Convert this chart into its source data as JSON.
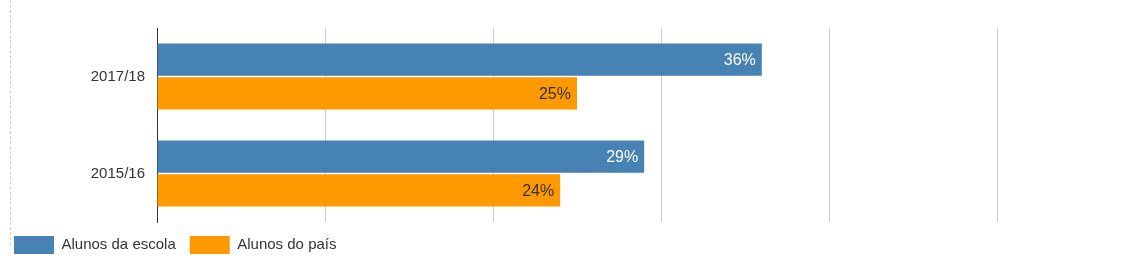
{
  "chart_data": {
    "type": "bar",
    "orientation": "horizontal",
    "categories": [
      "2017/18",
      "2015/16"
    ],
    "series": [
      {
        "name": "Alunos da escola",
        "color": "#4682b4",
        "values": [
          36,
          29
        ],
        "value_labels": [
          "36%",
          "29%"
        ]
      },
      {
        "name": "Alunos do país",
        "color": "#ff9900",
        "values": [
          25,
          24
        ],
        "value_labels": [
          "25%",
          "24%"
        ]
      }
    ],
    "xlim": [
      0,
      50
    ],
    "xticks": [
      {
        "value": 0,
        "label": null
      },
      {
        "value": 10,
        "label": null
      },
      {
        "value": 20,
        "label": null
      },
      {
        "value": 30,
        "label": null
      },
      {
        "value": 40,
        "label": null
      },
      {
        "value": 50,
        "label": null
      }
    ],
    "grid": "x",
    "legend": "bottom",
    "tick_labels": "y"
  }
}
